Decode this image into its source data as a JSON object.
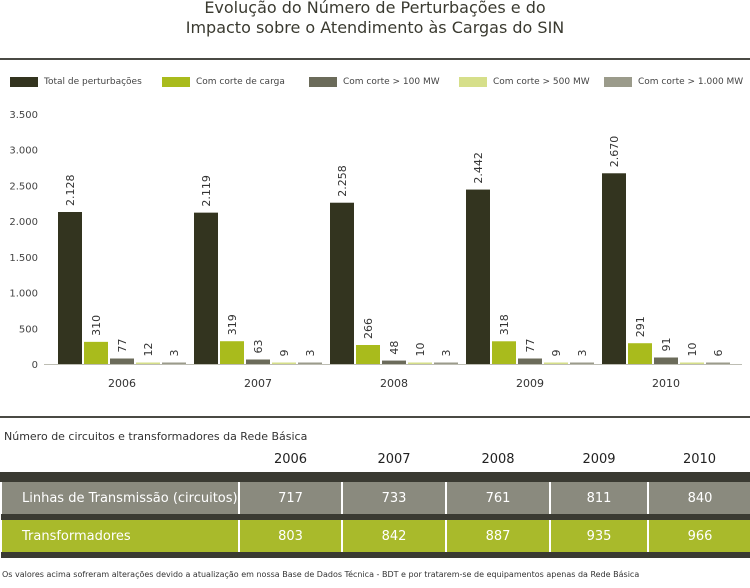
{
  "title": {
    "line1": "Evolução do Número de Perturbações e do",
    "line2": "Impacto sobre o Atendimento às Cargas do SIN"
  },
  "chart_data": {
    "type": "bar",
    "categories": [
      "2006",
      "2007",
      "2008",
      "2009",
      "2010"
    ],
    "series": [
      {
        "name": "Total de perturbações",
        "color": "#33341f",
        "values": [
          2128,
          2119,
          2258,
          2442,
          2670
        ],
        "labels": [
          "2.128",
          "2.119",
          "2.258",
          "2.442",
          "2.670"
        ]
      },
      {
        "name": "Com corte de carga",
        "color": "#a9bb1c",
        "values": [
          310,
          319,
          266,
          318,
          291
        ],
        "labels": [
          "310",
          "319",
          "266",
          "318",
          "291"
        ]
      },
      {
        "name": "Com corte > 100 MW",
        "color": "#6b6b5a",
        "values": [
          77,
          63,
          48,
          77,
          91
        ],
        "labels": [
          "77",
          "63",
          "48",
          "77",
          "91"
        ]
      },
      {
        "name": "Com corte > 500 MW",
        "color": "#d6df8a",
        "values": [
          12,
          9,
          10,
          9,
          10
        ],
        "labels": [
          "12",
          "9",
          "10",
          "9",
          "10"
        ]
      },
      {
        "name": "Com corte > 1.000 MW",
        "color": "#9b9b8b",
        "values": [
          3,
          3,
          3,
          3,
          6
        ],
        "labels": [
          "3",
          "3",
          "3",
          "3",
          "6"
        ]
      }
    ],
    "ylim": [
      0,
      3500
    ],
    "yticks": [
      0,
      500,
      1000,
      1500,
      2000,
      2500,
      3000,
      3500
    ],
    "ytick_labels": [
      "0",
      "500",
      "1.000",
      "1.500",
      "2.000",
      "2.500",
      "3.000",
      "3.500"
    ],
    "legend": "top",
    "grid": false
  },
  "table": {
    "caption": "Número de circuitos e transformadores da Rede Básica",
    "years": [
      "2006",
      "2007",
      "2008",
      "2009",
      "2010"
    ],
    "rows": [
      {
        "label": "Linhas de Transmissão (circuitos)",
        "values": [
          "717",
          "733",
          "761",
          "811",
          "840"
        ]
      },
      {
        "label": "Transformadores",
        "values": [
          "803",
          "842",
          "887",
          "935",
          "966"
        ]
      }
    ]
  },
  "footnote": "Os valores acima sofreram alterações devido a atualização em nossa Base de Dados Técnica - BDT e por tratarem-se de equipamentos apenas da Rede Básica"
}
